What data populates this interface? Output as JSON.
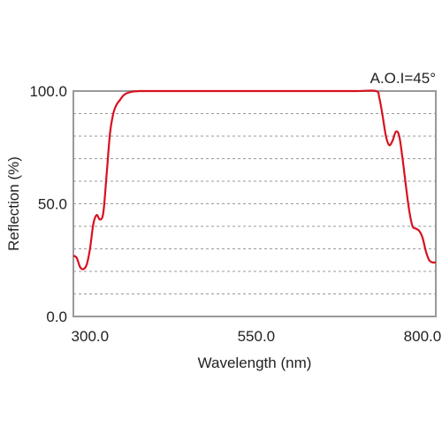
{
  "chart_data": {
    "type": "line",
    "title": "",
    "xlabel": "Wavelength (nm)",
    "ylabel": "Reflection (%)",
    "annotation": "A.O.I=45°",
    "xlim": [
      275,
      820
    ],
    "ylim": [
      0,
      100
    ],
    "x_ticks": [
      300,
      550,
      800
    ],
    "x_tick_labels": [
      "300.0",
      "550.0",
      "800.0"
    ],
    "y_ticks": [
      0,
      50,
      100
    ],
    "y_tick_labels": [
      "0.0",
      "50.0",
      "100.0"
    ],
    "grid": {
      "on": true,
      "style": "dashed",
      "orientation": "horizontal",
      "y_values": [
        10,
        20,
        30,
        40,
        50,
        60,
        70,
        80,
        90
      ]
    },
    "line_color": "#d8111f",
    "series": [
      {
        "x": [
          275,
          280,
          285,
          290,
          295,
          300,
          305,
          310,
          315,
          320,
          325,
          330,
          335,
          340,
          345,
          350,
          355,
          360,
          365,
          370,
          375,
          380,
          385,
          390,
          400,
          450,
          500,
          550,
          600,
          650,
          700,
          730,
          735,
          740,
          745,
          750,
          755,
          760,
          765,
          770,
          775,
          780,
          785,
          790,
          795,
          800,
          805,
          810,
          815,
          820
        ],
        "y": [
          27,
          26,
          22,
          21,
          23,
          30,
          41,
          45,
          43,
          46,
          63,
          81,
          90,
          94,
          96,
          98,
          99,
          99.5,
          99.8,
          99.9,
          100,
          100,
          100,
          100,
          100,
          100,
          100,
          100,
          100,
          100,
          100,
          100,
          97,
          89,
          80,
          76,
          78,
          82,
          80,
          70,
          58,
          47,
          40,
          39,
          38,
          35,
          29,
          25,
          24,
          24
        ]
      }
    ]
  }
}
